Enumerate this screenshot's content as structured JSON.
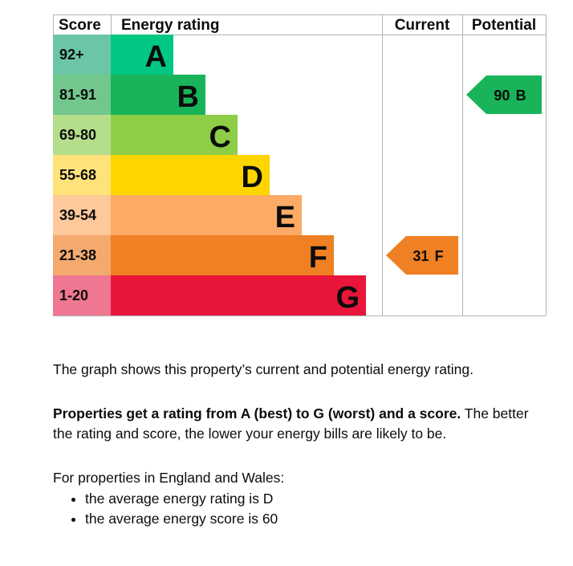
{
  "chart_data": {
    "type": "epc-rating-chart",
    "headers": {
      "score": "Score",
      "rating": "Energy rating",
      "current": "Current",
      "potential": "Potential"
    },
    "bands": [
      {
        "letter": "A",
        "range": "92+",
        "color": "#00c781",
        "score_color": "#6cc6a5"
      },
      {
        "letter": "B",
        "range": "81-91",
        "color": "#19b459",
        "score_color": "#72c78d"
      },
      {
        "letter": "C",
        "range": "69-80",
        "color": "#8dce46",
        "score_color": "#b5de8b"
      },
      {
        "letter": "D",
        "range": "55-68",
        "color": "#ffd500",
        "score_color": "#ffe27a"
      },
      {
        "letter": "E",
        "range": "39-54",
        "color": "#fcaa65",
        "score_color": "#fdc89a"
      },
      {
        "letter": "F",
        "range": "21-38",
        "color": "#ef8023",
        "score_color": "#f4aa6e"
      },
      {
        "letter": "G",
        "range": "1-20",
        "color": "#e9153b",
        "score_color": "#f07791"
      }
    ],
    "current": {
      "score": 31,
      "letter": "F",
      "label": "31 F",
      "color": "#ef8023"
    },
    "potential": {
      "score": 90,
      "letter": "B",
      "label": "90 B",
      "color": "#19b459"
    }
  },
  "text": {
    "intro": "The graph shows this property’s current and potential energy rating.",
    "rating_bold": "Properties get a rating from A (best) to G (worst) and a score.",
    "rating_rest": " The better the rating and score, the lower your energy bills are likely to be.",
    "region": "For properties in England and Wales:",
    "bullets": [
      "the average energy rating is D",
      "the average energy score is 60"
    ]
  }
}
